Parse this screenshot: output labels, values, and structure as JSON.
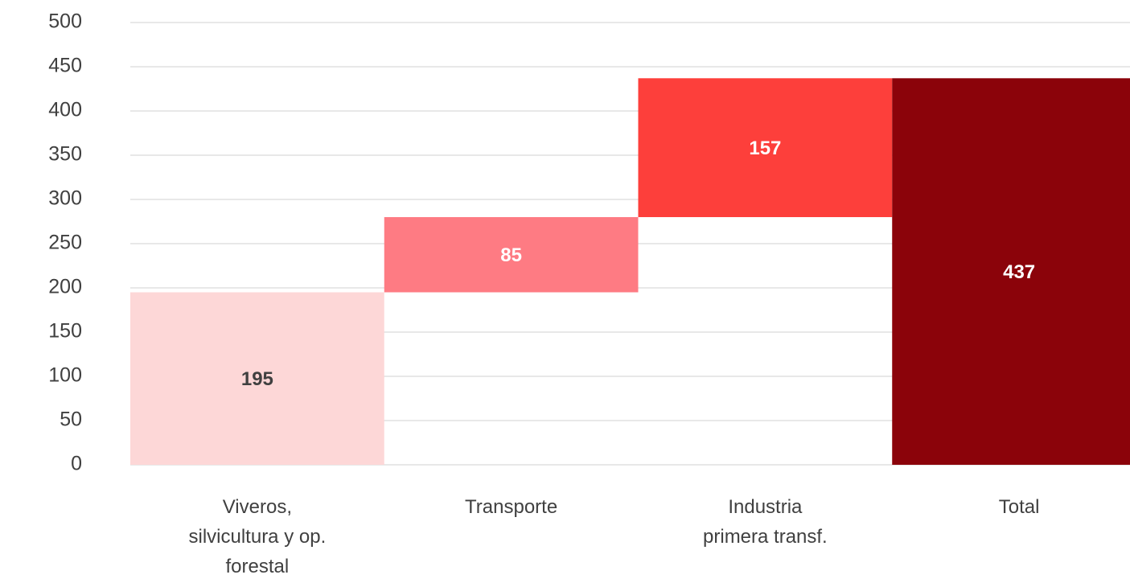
{
  "chart_data": {
    "type": "waterfall",
    "categories": [
      "Viveros, silvicultura y op. forestal",
      "Transporte",
      "Industria primera transf.",
      "Total"
    ],
    "values": [
      195,
      85,
      157,
      437
    ],
    "is_total": [
      false,
      false,
      false,
      true
    ],
    "colors": [
      "#fdd7d7",
      "#fe7b83",
      "#fd3f3b",
      "#8b030a"
    ],
    "label_colors": [
      "#404040",
      "#ffffff",
      "#ffffff",
      "#ffffff"
    ],
    "ylim": [
      0,
      500
    ],
    "yticks": [
      0,
      50,
      100,
      150,
      200,
      250,
      300,
      350,
      400,
      450,
      500
    ],
    "grid": true
  }
}
